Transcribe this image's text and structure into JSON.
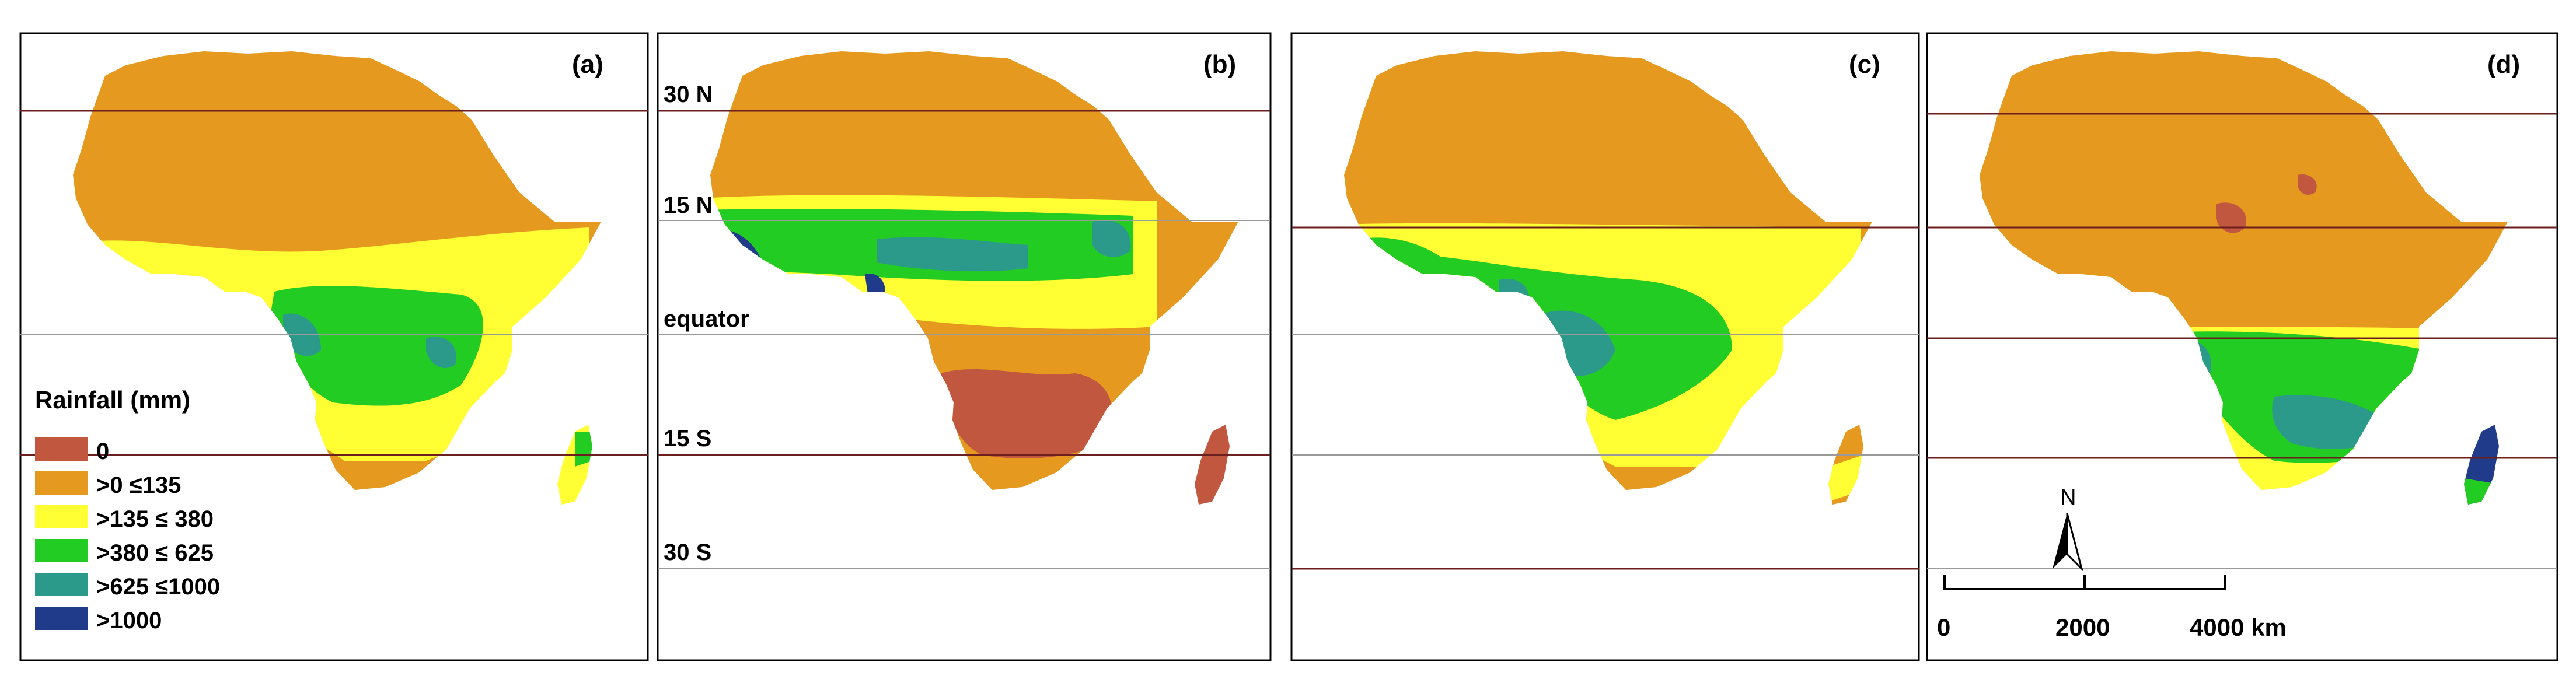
{
  "colors": {
    "zero": "#c0573e",
    "c0_135": "#e59a1f",
    "c135_380": "#ffff33",
    "c380_625": "#22cc22",
    "c625_1000": "#2c9a8a",
    "c1000": "#1f3b8a",
    "background": "#ffffff",
    "frame": "#000000",
    "latitude_line": "#6b1f1f"
  },
  "panels": [
    {
      "label": "(a)"
    },
    {
      "label": "(b)"
    },
    {
      "label": "(c)"
    },
    {
      "label": "(d)"
    }
  ],
  "latitude_labels": {
    "n30": "30 N",
    "n15": "15 N",
    "equator": "equator",
    "s15": "15 S",
    "s30": "30 S"
  },
  "legend": {
    "title": "Rainfall (mm)",
    "items": [
      {
        "label": "0",
        "color_key": "zero"
      },
      {
        "label": ">0 ≤135",
        "color_key": "c0_135"
      },
      {
        "label": ">135 ≤ 380",
        "color_key": "c135_380"
      },
      {
        "label": ">380 ≤ 625",
        "color_key": "c380_625"
      },
      {
        "label": ">625 ≤1000",
        "color_key": "c625_1000"
      },
      {
        "label": ">1000",
        "color_key": "c1000"
      }
    ]
  },
  "scale_bar": {
    "ticks": [
      "0",
      "2000",
      "4000 km"
    ]
  },
  "north_arrow": {
    "label": "N",
    "icon": "north-arrow-icon"
  }
}
